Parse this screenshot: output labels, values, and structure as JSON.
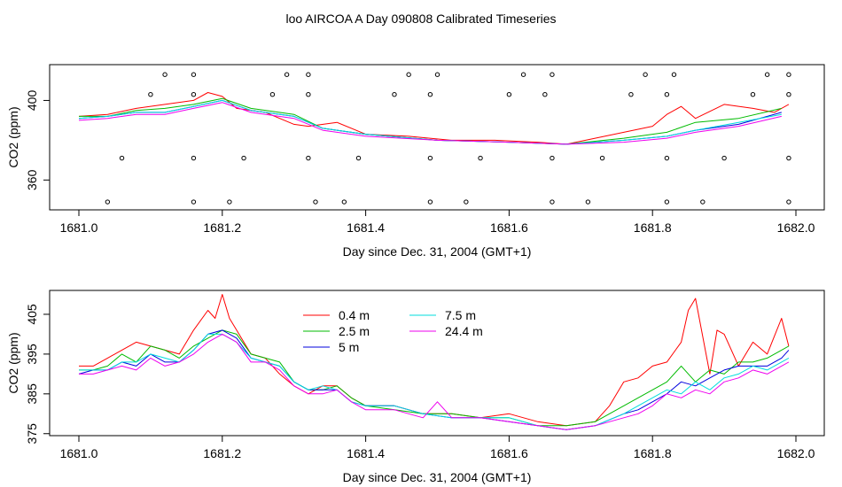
{
  "title": "loo AIRCOA A  Day 090808  Calibrated Timeseries",
  "colors": {
    "0.4 m": "#ff0000",
    "2.5 m": "#00bb00",
    "5 m": "#0000dd",
    "7.5 m": "#00dddd",
    "24.4 m": "#ee00ee",
    "points": "#000000",
    "axes": "#000000"
  },
  "chart_data": [
    {
      "type": "line",
      "xlabel": "Day since Dec. 31, 2004 (GMT+1)",
      "ylabel": "CO2 (ppm)",
      "xlim": [
        1681.0,
        1682.0
      ],
      "ylim": [
        345,
        418
      ],
      "xticks": [
        "1681.0",
        "1681.2",
        "1681.4",
        "1681.6",
        "1681.8",
        "1682.0"
      ],
      "yticks": [
        "360",
        "400"
      ],
      "series": [
        {
          "color_key": "0.4 m",
          "x": [
            1681.0,
            1681.04,
            1681.08,
            1681.12,
            1681.16,
            1681.18,
            1681.2,
            1681.22,
            1681.26,
            1681.3,
            1681.32,
            1681.36,
            1681.4,
            1681.46,
            1681.52,
            1681.58,
            1681.64,
            1681.68,
            1681.72,
            1681.76,
            1681.8,
            1681.82,
            1681.84,
            1681.86,
            1681.9,
            1681.94,
            1681.97,
            1681.99
          ],
          "y": [
            392,
            393,
            396,
            398,
            400,
            404,
            402,
            396,
            394,
            388,
            387,
            389,
            383,
            382,
            380,
            380,
            379,
            378,
            381,
            384,
            387,
            393,
            397,
            391,
            398,
            396,
            394,
            398
          ]
        },
        {
          "color_key": "2.5 m",
          "x": [
            1681.0,
            1681.04,
            1681.08,
            1681.12,
            1681.16,
            1681.2,
            1681.24,
            1681.3,
            1681.34,
            1681.4,
            1681.5,
            1681.6,
            1681.68,
            1681.76,
            1681.82,
            1681.86,
            1681.92,
            1681.98
          ],
          "y": [
            392,
            392,
            395,
            396,
            398,
            401,
            396,
            393,
            386,
            383,
            380,
            379,
            378,
            381,
            384,
            389,
            391,
            396
          ]
        },
        {
          "color_key": "5 m",
          "x": [
            1681.0,
            1681.04,
            1681.08,
            1681.12,
            1681.16,
            1681.2,
            1681.24,
            1681.3,
            1681.34,
            1681.4,
            1681.5,
            1681.6,
            1681.68,
            1681.76,
            1681.82,
            1681.86,
            1681.92,
            1681.98
          ],
          "y": [
            391,
            392,
            394,
            394,
            397,
            400,
            395,
            392,
            386,
            383,
            380,
            379,
            378,
            380,
            382,
            385,
            388,
            394
          ]
        },
        {
          "color_key": "7.5 m",
          "x": [
            1681.0,
            1681.04,
            1681.08,
            1681.12,
            1681.16,
            1681.2,
            1681.24,
            1681.3,
            1681.34,
            1681.4,
            1681.5,
            1681.6,
            1681.68,
            1681.76,
            1681.82,
            1681.86,
            1681.92,
            1681.98
          ],
          "y": [
            391,
            392,
            394,
            394,
            397,
            400,
            395,
            392,
            386,
            383,
            380,
            379,
            378,
            380,
            382,
            385,
            389,
            393
          ]
        },
        {
          "color_key": "24.4 m",
          "x": [
            1681.0,
            1681.04,
            1681.08,
            1681.12,
            1681.16,
            1681.2,
            1681.24,
            1681.3,
            1681.34,
            1681.4,
            1681.5,
            1681.6,
            1681.68,
            1681.76,
            1681.82,
            1681.86,
            1681.92,
            1681.98
          ],
          "y": [
            390,
            391,
            393,
            393,
            396,
            399,
            394,
            391,
            385,
            382,
            380,
            379,
            378,
            379,
            381,
            384,
            387,
            392
          ]
        }
      ],
      "points": {
        "x": [
          1681.12,
          1681.16,
          1681.29,
          1681.32,
          1681.46,
          1681.5,
          1681.62,
          1681.66,
          1681.79,
          1681.83,
          1681.96,
          1681.99,
          1681.1,
          1681.16,
          1681.27,
          1681.32,
          1681.44,
          1681.49,
          1681.6,
          1681.65,
          1681.77,
          1681.82,
          1681.94,
          1681.99,
          1681.06,
          1681.16,
          1681.23,
          1681.32,
          1681.39,
          1681.49,
          1681.56,
          1681.66,
          1681.73,
          1681.82,
          1681.9,
          1681.99,
          1681.04,
          1681.16,
          1681.21,
          1681.33,
          1681.37,
          1681.49,
          1681.54,
          1681.66,
          1681.71,
          1681.82,
          1681.87,
          1681.99
        ],
        "y": [
          413,
          413,
          413,
          413,
          413,
          413,
          413,
          413,
          413,
          413,
          413,
          413,
          403,
          403,
          403,
          403,
          403,
          403,
          403,
          403,
          403,
          403,
          403,
          403,
          371,
          371,
          371,
          371,
          371,
          371,
          371,
          371,
          371,
          371,
          371,
          371,
          349,
          349,
          349,
          349,
          349,
          349,
          349,
          349,
          349,
          349,
          349,
          349
        ]
      }
    },
    {
      "type": "line",
      "xlabel": "Day since Dec. 31, 2004 (GMT+1)",
      "ylabel": "CO2 (ppm)",
      "xlim": [
        1681.0,
        1682.0
      ],
      "ylim": [
        374.5,
        411
      ],
      "xticks": [
        "1681.0",
        "1681.2",
        "1681.4",
        "1681.6",
        "1681.8",
        "1682.0"
      ],
      "yticks": [
        "375",
        "385",
        "395",
        "405"
      ],
      "legend": {
        "placement": "top-center",
        "entries": [
          "0.4 m",
          "2.5 m",
          "5 m",
          "7.5 m",
          "24.4 m"
        ]
      },
      "series": [
        {
          "name": "0.4 m",
          "x": [
            1681.0,
            1681.02,
            1681.04,
            1681.06,
            1681.08,
            1681.1,
            1681.12,
            1681.14,
            1681.16,
            1681.18,
            1681.19,
            1681.2,
            1681.21,
            1681.22,
            1681.24,
            1681.26,
            1681.28,
            1681.3,
            1681.32,
            1681.34,
            1681.36,
            1681.38,
            1681.4,
            1681.44,
            1681.48,
            1681.52,
            1681.56,
            1681.6,
            1681.64,
            1681.68,
            1681.72,
            1681.74,
            1681.76,
            1681.78,
            1681.8,
            1681.82,
            1681.84,
            1681.85,
            1681.86,
            1681.88,
            1681.89,
            1681.9,
            1681.92,
            1681.94,
            1681.96,
            1681.98,
            1681.99
          ],
          "y": [
            392,
            392,
            394,
            396,
            398,
            397,
            396,
            395,
            401,
            406,
            404,
            410,
            404,
            401,
            395,
            394,
            390,
            387,
            385,
            387,
            387,
            384,
            382,
            382,
            380,
            380,
            379,
            380,
            378,
            377,
            378,
            382,
            388,
            389,
            392,
            393,
            398,
            406,
            409,
            390,
            401,
            400,
            392,
            398,
            395,
            404,
            397
          ]
        },
        {
          "name": "2.5 m",
          "x": [
            1681.0,
            1681.02,
            1681.04,
            1681.06,
            1681.08,
            1681.1,
            1681.12,
            1681.14,
            1681.16,
            1681.18,
            1681.2,
            1681.22,
            1681.24,
            1681.26,
            1681.28,
            1681.3,
            1681.32,
            1681.34,
            1681.36,
            1681.38,
            1681.4,
            1681.44,
            1681.48,
            1681.52,
            1681.56,
            1681.6,
            1681.64,
            1681.68,
            1681.72,
            1681.76,
            1681.78,
            1681.8,
            1681.82,
            1681.84,
            1681.86,
            1681.88,
            1681.9,
            1681.92,
            1681.94,
            1681.96,
            1681.98,
            1681.99
          ],
          "y": [
            391,
            391,
            392,
            395,
            393,
            397,
            396,
            394,
            397,
            399,
            401,
            400,
            395,
            394,
            393,
            388,
            386,
            386,
            387,
            384,
            382,
            381,
            380,
            380,
            379,
            379,
            377,
            377,
            378,
            382,
            384,
            386,
            388,
            392,
            388,
            391,
            390,
            393,
            393,
            394,
            396,
            397
          ]
        },
        {
          "name": "5 m",
          "x": [
            1681.0,
            1681.02,
            1681.04,
            1681.06,
            1681.08,
            1681.1,
            1681.12,
            1681.14,
            1681.16,
            1681.18,
            1681.2,
            1681.22,
            1681.24,
            1681.26,
            1681.28,
            1681.3,
            1681.32,
            1681.34,
            1681.36,
            1681.38,
            1681.4,
            1681.44,
            1681.48,
            1681.52,
            1681.56,
            1681.6,
            1681.64,
            1681.68,
            1681.72,
            1681.76,
            1681.78,
            1681.8,
            1681.82,
            1681.84,
            1681.86,
            1681.88,
            1681.9,
            1681.92,
            1681.94,
            1681.96,
            1681.98,
            1681.99
          ],
          "y": [
            390,
            391,
            391,
            393,
            392,
            395,
            393,
            393,
            396,
            400,
            401,
            399,
            394,
            393,
            392,
            388,
            386,
            386,
            386,
            383,
            382,
            382,
            380,
            379,
            379,
            378,
            377,
            376,
            377,
            380,
            381,
            383,
            385,
            388,
            387,
            389,
            391,
            392,
            392,
            392,
            394,
            396
          ]
        },
        {
          "name": "7.5 m",
          "x": [
            1681.0,
            1681.02,
            1681.04,
            1681.06,
            1681.08,
            1681.1,
            1681.12,
            1681.14,
            1681.16,
            1681.18,
            1681.2,
            1681.22,
            1681.24,
            1681.26,
            1681.28,
            1681.3,
            1681.32,
            1681.34,
            1681.36,
            1681.38,
            1681.4,
            1681.44,
            1681.48,
            1681.52,
            1681.56,
            1681.6,
            1681.64,
            1681.68,
            1681.72,
            1681.76,
            1681.78,
            1681.8,
            1681.82,
            1681.84,
            1681.86,
            1681.88,
            1681.9,
            1681.92,
            1681.94,
            1681.96,
            1681.98,
            1681.99
          ],
          "y": [
            391,
            391,
            391,
            393,
            393,
            395,
            394,
            393,
            396,
            400,
            400,
            398,
            394,
            393,
            392,
            388,
            386,
            387,
            386,
            383,
            382,
            382,
            380,
            379,
            379,
            379,
            377,
            376,
            377,
            380,
            382,
            384,
            386,
            385,
            388,
            386,
            389,
            390,
            392,
            391,
            393,
            394
          ]
        },
        {
          "name": "24.4 m",
          "x": [
            1681.0,
            1681.02,
            1681.04,
            1681.06,
            1681.08,
            1681.1,
            1681.12,
            1681.14,
            1681.16,
            1681.18,
            1681.2,
            1681.22,
            1681.24,
            1681.26,
            1681.28,
            1681.3,
            1681.32,
            1681.34,
            1681.36,
            1681.38,
            1681.4,
            1681.44,
            1681.48,
            1681.5,
            1681.52,
            1681.56,
            1681.6,
            1681.64,
            1681.68,
            1681.72,
            1681.76,
            1681.78,
            1681.8,
            1681.82,
            1681.84,
            1681.86,
            1681.88,
            1681.9,
            1681.92,
            1681.94,
            1681.96,
            1681.98,
            1681.99
          ],
          "y": [
            390,
            390,
            391,
            392,
            391,
            394,
            392,
            393,
            395,
            398,
            400,
            398,
            393,
            393,
            391,
            387,
            385,
            385,
            386,
            383,
            381,
            381,
            379,
            383,
            379,
            379,
            378,
            377,
            376,
            377,
            379,
            380,
            382,
            385,
            384,
            386,
            385,
            388,
            389,
            391,
            390,
            392,
            393
          ]
        }
      ]
    }
  ]
}
